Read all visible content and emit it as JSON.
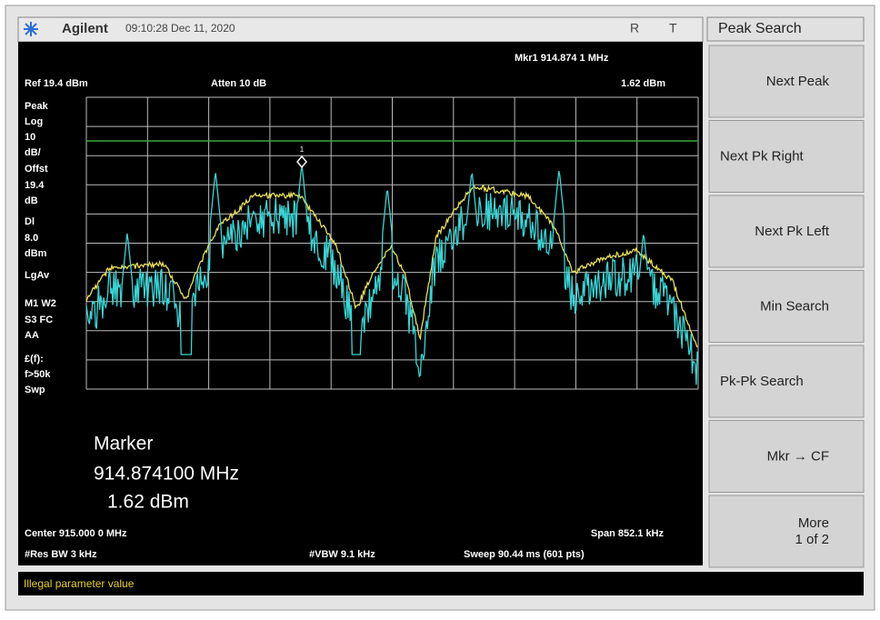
{
  "header": {
    "logo": "Agilent",
    "time": "09:10:28 Dec 11, 2020",
    "flag_r": "R",
    "flag_t": "T"
  },
  "screen": {
    "marker_readout": "Mkr1  914.874 1 MHz",
    "ref": "Ref 19.4 dBm",
    "atten": "Atten 10 dB",
    "marker_level": "1.62 dBm",
    "marker_label": "1",
    "left_labels": [
      "Peak",
      "Log",
      "10",
      "dB/",
      "Offst",
      "19.4",
      "dB",
      "Dl",
      "8.0",
      "dBm",
      "LgAv",
      "M1   W2",
      "S3   FC",
      "AA",
      "£(f):",
      "f>50k",
      "Swp"
    ],
    "marker_box": [
      "Marker",
      "914.874100 MHz",
      "1.62 dBm"
    ],
    "footer": {
      "center": "Center 915.000 0 MHz",
      "span": "Span 852.1 kHz",
      "res_bw": "#Res BW 3 kHz",
      "vbw": "#VBW 9.1 kHz",
      "sweep": "Sweep 90.44 ms (601 pts)"
    }
  },
  "menu": {
    "title": "Peak Search",
    "buttons": [
      [
        "Next Peak"
      ],
      [
        "Next Pk Right"
      ],
      [
        "Next Pk Left"
      ],
      [
        "Min Search"
      ],
      [
        "Pk-Pk Search"
      ],
      [
        "Mkr → CF"
      ],
      [
        "More",
        "1 of 2"
      ]
    ]
  },
  "status": "Illegal parameter value"
}
